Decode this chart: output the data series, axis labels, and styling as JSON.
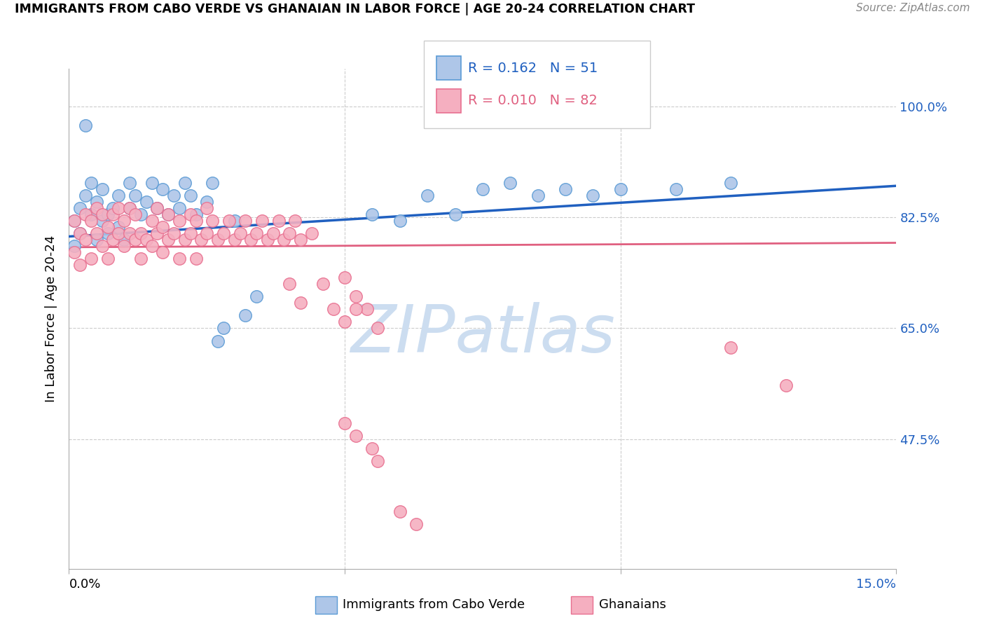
{
  "title": "IMMIGRANTS FROM CABO VERDE VS GHANAIAN IN LABOR FORCE | AGE 20-24 CORRELATION CHART",
  "source": "Source: ZipAtlas.com",
  "ylabel": "In Labor Force | Age 20-24",
  "ytick_labels": [
    "100.0%",
    "82.5%",
    "65.0%",
    "47.5%"
  ],
  "ytick_values": [
    1.0,
    0.825,
    0.65,
    0.475
  ],
  "xmin": 0.0,
  "xmax": 0.15,
  "ymin": 0.27,
  "ymax": 1.06,
  "cabo_verde_color": "#aec6e8",
  "ghanaian_color": "#f5afc0",
  "cabo_verde_edge_color": "#5b9bd5",
  "ghanaian_edge_color": "#e87090",
  "cabo_verde_line_color": "#2060c0",
  "ghanaian_line_color": "#e06080",
  "legend_R_cabo": "0.162",
  "legend_N_cabo": "51",
  "legend_R_ghana": "0.010",
  "legend_N_ghana": "82",
  "cabo_verde_x": [
    0.001,
    0.001,
    0.002,
    0.002,
    0.003,
    0.003,
    0.004,
    0.004,
    0.005,
    0.005,
    0.006,
    0.006,
    0.007,
    0.007,
    0.008,
    0.009,
    0.009,
    0.01,
    0.011,
    0.011,
    0.012,
    0.013,
    0.014,
    0.015,
    0.016,
    0.017,
    0.018,
    0.019,
    0.02,
    0.021,
    0.022,
    0.023,
    0.025,
    0.026,
    0.027,
    0.028,
    0.03,
    0.032,
    0.034,
    0.055,
    0.06,
    0.065,
    0.07,
    0.075,
    0.08,
    0.085,
    0.09,
    0.095,
    0.1,
    0.11,
    0.12
  ],
  "cabo_verde_y": [
    0.82,
    0.78,
    0.84,
    0.8,
    0.86,
    0.97,
    0.83,
    0.88,
    0.85,
    0.79,
    0.82,
    0.87,
    0.8,
    0.83,
    0.84,
    0.81,
    0.86,
    0.79,
    0.88,
    0.84,
    0.86,
    0.83,
    0.85,
    0.88,
    0.84,
    0.87,
    0.83,
    0.86,
    0.84,
    0.88,
    0.86,
    0.83,
    0.85,
    0.88,
    0.63,
    0.65,
    0.82,
    0.67,
    0.7,
    0.83,
    0.82,
    0.86,
    0.83,
    0.87,
    0.88,
    0.86,
    0.87,
    0.86,
    0.87,
    0.87,
    0.88
  ],
  "ghanaian_x": [
    0.001,
    0.001,
    0.002,
    0.002,
    0.003,
    0.003,
    0.004,
    0.004,
    0.005,
    0.005,
    0.006,
    0.006,
    0.007,
    0.007,
    0.008,
    0.008,
    0.009,
    0.009,
    0.01,
    0.01,
    0.011,
    0.011,
    0.012,
    0.012,
    0.013,
    0.013,
    0.014,
    0.015,
    0.015,
    0.016,
    0.016,
    0.017,
    0.017,
    0.018,
    0.018,
    0.019,
    0.02,
    0.02,
    0.021,
    0.022,
    0.022,
    0.023,
    0.023,
    0.024,
    0.025,
    0.025,
    0.026,
    0.027,
    0.028,
    0.029,
    0.03,
    0.031,
    0.032,
    0.033,
    0.034,
    0.035,
    0.036,
    0.037,
    0.038,
    0.039,
    0.04,
    0.041,
    0.042,
    0.044,
    0.046,
    0.048,
    0.05,
    0.052,
    0.054,
    0.056,
    0.04,
    0.042,
    0.05,
    0.052,
    0.05,
    0.052,
    0.055,
    0.056,
    0.06,
    0.063,
    0.12,
    0.13
  ],
  "ghanaian_y": [
    0.82,
    0.77,
    0.8,
    0.75,
    0.79,
    0.83,
    0.76,
    0.82,
    0.8,
    0.84,
    0.78,
    0.83,
    0.81,
    0.76,
    0.79,
    0.83,
    0.8,
    0.84,
    0.78,
    0.82,
    0.8,
    0.84,
    0.79,
    0.83,
    0.8,
    0.76,
    0.79,
    0.82,
    0.78,
    0.8,
    0.84,
    0.81,
    0.77,
    0.79,
    0.83,
    0.8,
    0.82,
    0.76,
    0.79,
    0.83,
    0.8,
    0.82,
    0.76,
    0.79,
    0.8,
    0.84,
    0.82,
    0.79,
    0.8,
    0.82,
    0.79,
    0.8,
    0.82,
    0.79,
    0.8,
    0.82,
    0.79,
    0.8,
    0.82,
    0.79,
    0.8,
    0.82,
    0.79,
    0.8,
    0.72,
    0.68,
    0.66,
    0.7,
    0.68,
    0.65,
    0.72,
    0.69,
    0.73,
    0.68,
    0.5,
    0.48,
    0.46,
    0.44,
    0.36,
    0.34,
    0.62,
    0.56
  ],
  "watermark": "ZIPatlas",
  "watermark_color": "#ccddf0",
  "grid_color": "#cccccc",
  "spine_color": "#aaaaaa"
}
